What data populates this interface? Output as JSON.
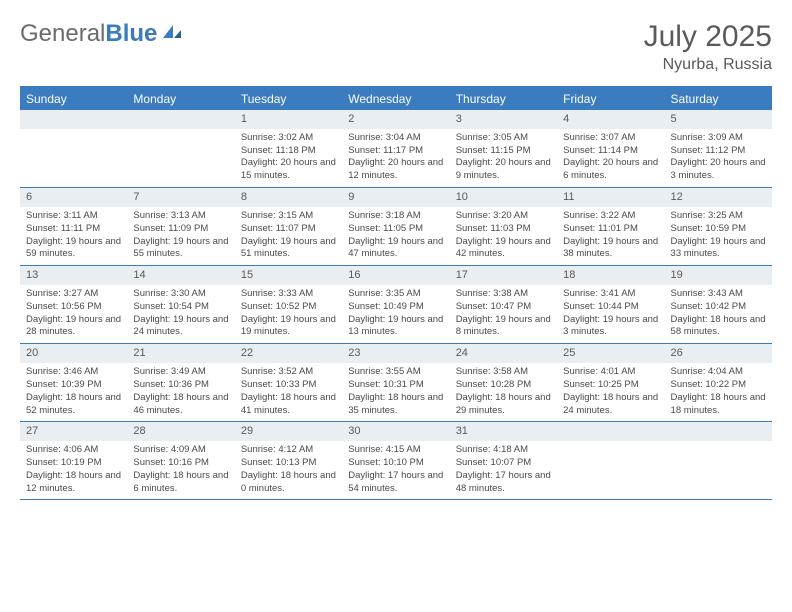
{
  "logo": {
    "text1": "General",
    "text2": "Blue"
  },
  "title": "July 2025",
  "location": "Nyurba, Russia",
  "weekdays": [
    "Sunday",
    "Monday",
    "Tuesday",
    "Wednesday",
    "Thursday",
    "Friday",
    "Saturday"
  ],
  "colors": {
    "header_blue": "#3b7bbf",
    "daybar_bg": "#e8eef2",
    "text": "#4a4a4a"
  },
  "weeks": [
    [
      null,
      null,
      {
        "n": "1",
        "sunrise": "Sunrise: 3:02 AM",
        "sunset": "Sunset: 11:18 PM",
        "daylight": "Daylight: 20 hours and 15 minutes."
      },
      {
        "n": "2",
        "sunrise": "Sunrise: 3:04 AM",
        "sunset": "Sunset: 11:17 PM",
        "daylight": "Daylight: 20 hours and 12 minutes."
      },
      {
        "n": "3",
        "sunrise": "Sunrise: 3:05 AM",
        "sunset": "Sunset: 11:15 PM",
        "daylight": "Daylight: 20 hours and 9 minutes."
      },
      {
        "n": "4",
        "sunrise": "Sunrise: 3:07 AM",
        "sunset": "Sunset: 11:14 PM",
        "daylight": "Daylight: 20 hours and 6 minutes."
      },
      {
        "n": "5",
        "sunrise": "Sunrise: 3:09 AM",
        "sunset": "Sunset: 11:12 PM",
        "daylight": "Daylight: 20 hours and 3 minutes."
      }
    ],
    [
      {
        "n": "6",
        "sunrise": "Sunrise: 3:11 AM",
        "sunset": "Sunset: 11:11 PM",
        "daylight": "Daylight: 19 hours and 59 minutes."
      },
      {
        "n": "7",
        "sunrise": "Sunrise: 3:13 AM",
        "sunset": "Sunset: 11:09 PM",
        "daylight": "Daylight: 19 hours and 55 minutes."
      },
      {
        "n": "8",
        "sunrise": "Sunrise: 3:15 AM",
        "sunset": "Sunset: 11:07 PM",
        "daylight": "Daylight: 19 hours and 51 minutes."
      },
      {
        "n": "9",
        "sunrise": "Sunrise: 3:18 AM",
        "sunset": "Sunset: 11:05 PM",
        "daylight": "Daylight: 19 hours and 47 minutes."
      },
      {
        "n": "10",
        "sunrise": "Sunrise: 3:20 AM",
        "sunset": "Sunset: 11:03 PM",
        "daylight": "Daylight: 19 hours and 42 minutes."
      },
      {
        "n": "11",
        "sunrise": "Sunrise: 3:22 AM",
        "sunset": "Sunset: 11:01 PM",
        "daylight": "Daylight: 19 hours and 38 minutes."
      },
      {
        "n": "12",
        "sunrise": "Sunrise: 3:25 AM",
        "sunset": "Sunset: 10:59 PM",
        "daylight": "Daylight: 19 hours and 33 minutes."
      }
    ],
    [
      {
        "n": "13",
        "sunrise": "Sunrise: 3:27 AM",
        "sunset": "Sunset: 10:56 PM",
        "daylight": "Daylight: 19 hours and 28 minutes."
      },
      {
        "n": "14",
        "sunrise": "Sunrise: 3:30 AM",
        "sunset": "Sunset: 10:54 PM",
        "daylight": "Daylight: 19 hours and 24 minutes."
      },
      {
        "n": "15",
        "sunrise": "Sunrise: 3:33 AM",
        "sunset": "Sunset: 10:52 PM",
        "daylight": "Daylight: 19 hours and 19 minutes."
      },
      {
        "n": "16",
        "sunrise": "Sunrise: 3:35 AM",
        "sunset": "Sunset: 10:49 PM",
        "daylight": "Daylight: 19 hours and 13 minutes."
      },
      {
        "n": "17",
        "sunrise": "Sunrise: 3:38 AM",
        "sunset": "Sunset: 10:47 PM",
        "daylight": "Daylight: 19 hours and 8 minutes."
      },
      {
        "n": "18",
        "sunrise": "Sunrise: 3:41 AM",
        "sunset": "Sunset: 10:44 PM",
        "daylight": "Daylight: 19 hours and 3 minutes."
      },
      {
        "n": "19",
        "sunrise": "Sunrise: 3:43 AM",
        "sunset": "Sunset: 10:42 PM",
        "daylight": "Daylight: 18 hours and 58 minutes."
      }
    ],
    [
      {
        "n": "20",
        "sunrise": "Sunrise: 3:46 AM",
        "sunset": "Sunset: 10:39 PM",
        "daylight": "Daylight: 18 hours and 52 minutes."
      },
      {
        "n": "21",
        "sunrise": "Sunrise: 3:49 AM",
        "sunset": "Sunset: 10:36 PM",
        "daylight": "Daylight: 18 hours and 46 minutes."
      },
      {
        "n": "22",
        "sunrise": "Sunrise: 3:52 AM",
        "sunset": "Sunset: 10:33 PM",
        "daylight": "Daylight: 18 hours and 41 minutes."
      },
      {
        "n": "23",
        "sunrise": "Sunrise: 3:55 AM",
        "sunset": "Sunset: 10:31 PM",
        "daylight": "Daylight: 18 hours and 35 minutes."
      },
      {
        "n": "24",
        "sunrise": "Sunrise: 3:58 AM",
        "sunset": "Sunset: 10:28 PM",
        "daylight": "Daylight: 18 hours and 29 minutes."
      },
      {
        "n": "25",
        "sunrise": "Sunrise: 4:01 AM",
        "sunset": "Sunset: 10:25 PM",
        "daylight": "Daylight: 18 hours and 24 minutes."
      },
      {
        "n": "26",
        "sunrise": "Sunrise: 4:04 AM",
        "sunset": "Sunset: 10:22 PM",
        "daylight": "Daylight: 18 hours and 18 minutes."
      }
    ],
    [
      {
        "n": "27",
        "sunrise": "Sunrise: 4:06 AM",
        "sunset": "Sunset: 10:19 PM",
        "daylight": "Daylight: 18 hours and 12 minutes."
      },
      {
        "n": "28",
        "sunrise": "Sunrise: 4:09 AM",
        "sunset": "Sunset: 10:16 PM",
        "daylight": "Daylight: 18 hours and 6 minutes."
      },
      {
        "n": "29",
        "sunrise": "Sunrise: 4:12 AM",
        "sunset": "Sunset: 10:13 PM",
        "daylight": "Daylight: 18 hours and 0 minutes."
      },
      {
        "n": "30",
        "sunrise": "Sunrise: 4:15 AM",
        "sunset": "Sunset: 10:10 PM",
        "daylight": "Daylight: 17 hours and 54 minutes."
      },
      {
        "n": "31",
        "sunrise": "Sunrise: 4:18 AM",
        "sunset": "Sunset: 10:07 PM",
        "daylight": "Daylight: 17 hours and 48 minutes."
      },
      null,
      null
    ]
  ]
}
